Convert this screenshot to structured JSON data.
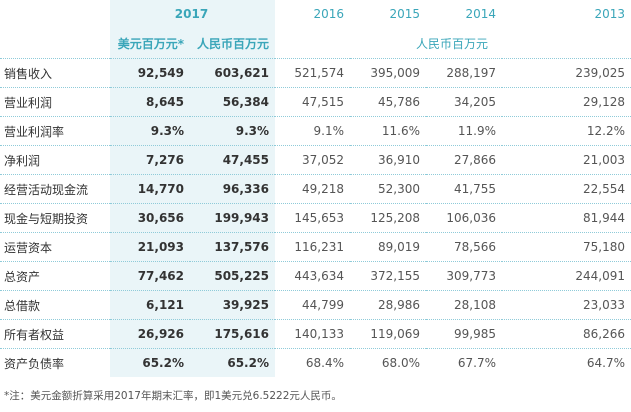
{
  "header": {
    "year_main": "2017",
    "years": [
      "2016",
      "2015",
      "2014",
      "2013"
    ]
  },
  "subheader": {
    "usd": "美元百万元*",
    "rmb": "人民币百万元",
    "rmb_other": "人民币百万元"
  },
  "rows": [
    {
      "label": "销售收入",
      "values": [
        "92,549",
        "603,621",
        "521,574",
        "395,009",
        "288,197",
        "239,025"
      ]
    },
    {
      "label": "营业利润",
      "values": [
        "8,645",
        "56,384",
        "47,515",
        "45,786",
        "34,205",
        "29,128"
      ]
    },
    {
      "label": "营业利润率",
      "values": [
        "9.3%",
        "9.3%",
        "9.1%",
        "11.6%",
        "11.9%",
        "12.2%"
      ]
    },
    {
      "label": "净利润",
      "values": [
        "7,276",
        "47,455",
        "37,052",
        "36,910",
        "27,866",
        "21,003"
      ]
    },
    {
      "label": "经营活动现金流",
      "values": [
        "14,770",
        "96,336",
        "49,218",
        "52,300",
        "41,755",
        "22,554"
      ]
    },
    {
      "label": "现金与短期投资",
      "values": [
        "30,656",
        "199,943",
        "145,653",
        "125,208",
        "106,036",
        "81,944"
      ]
    },
    {
      "label": "运营资本",
      "values": [
        "21,093",
        "137,576",
        "116,231",
        "89,019",
        "78,566",
        "75,180"
      ]
    },
    {
      "label": "总资产",
      "values": [
        "77,462",
        "505,225",
        "443,634",
        "372,155",
        "309,773",
        "244,091"
      ]
    },
    {
      "label": "总借款",
      "values": [
        "6,121",
        "39,925",
        "44,799",
        "28,986",
        "28,108",
        "23,033"
      ]
    },
    {
      "label": "所有者权益",
      "values": [
        "26,926",
        "175,616",
        "140,133",
        "119,069",
        "99,985",
        "86,266"
      ]
    },
    {
      "label": "资产负债率",
      "values": [
        "65.2%",
        "65.2%",
        "68.4%",
        "68.0%",
        "67.7%",
        "64.7%"
      ]
    }
  ],
  "footnote": "*注：美元金额折算采用2017年期末汇率，即1美元兑6.5222元人民币。"
}
